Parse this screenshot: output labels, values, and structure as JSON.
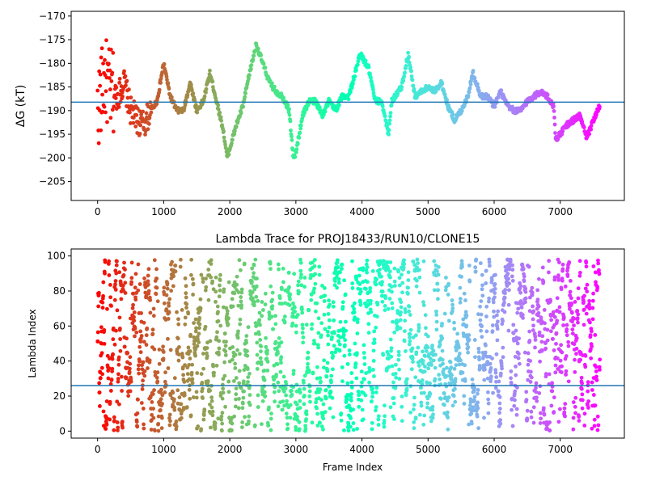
{
  "chart_data": [
    {
      "type": "scatter",
      "title": "",
      "xlabel": "",
      "ylabel": "ΔG (kT)",
      "xlim": [
        -400,
        7970
      ],
      "ylim": [
        -209,
        -169
      ],
      "xticks": [
        0,
        1000,
        2000,
        3000,
        4000,
        5000,
        6000,
        7000
      ],
      "yticks": [
        -205,
        -200,
        -195,
        -190,
        -185,
        -180,
        -175,
        -170
      ],
      "xtick_labels": [
        "0",
        "1000",
        "2000",
        "3000",
        "4000",
        "5000",
        "6000",
        "7000"
      ],
      "ytick_labels": [
        "−205",
        "−200",
        "−195",
        "−190",
        "−185",
        "−180",
        "−175",
        "−170"
      ],
      "hline": -188.2,
      "hline_color": "#1f77b4",
      "colormap": "rainbow (red at frame 0 → violet at last frame)",
      "frames_total": 7600,
      "trace_points": [
        [
          0,
          -190
        ],
        [
          100,
          -183
        ],
        [
          200,
          -186
        ],
        [
          300,
          -187
        ],
        [
          400,
          -184
        ],
        [
          500,
          -190
        ],
        [
          600,
          -192
        ],
        [
          700,
          -193
        ],
        [
          800,
          -190
        ],
        [
          900,
          -188
        ],
        [
          1000,
          -180
        ],
        [
          1100,
          -187
        ],
        [
          1200,
          -190
        ],
        [
          1300,
          -190
        ],
        [
          1400,
          -184
        ],
        [
          1500,
          -190
        ],
        [
          1600,
          -188
        ],
        [
          1700,
          -182
        ],
        [
          1800,
          -188
        ],
        [
          1900,
          -194
        ],
        [
          1960,
          -200
        ],
        [
          2100,
          -193
        ],
        [
          2200,
          -189
        ],
        [
          2300,
          -182
        ],
        [
          2400,
          -176
        ],
        [
          2500,
          -180
        ],
        [
          2600,
          -184
        ],
        [
          2700,
          -186
        ],
        [
          2800,
          -187
        ],
        [
          2900,
          -190
        ],
        [
          2960,
          -200
        ],
        [
          3000,
          -199
        ],
        [
          3100,
          -191
        ],
        [
          3200,
          -188
        ],
        [
          3300,
          -188
        ],
        [
          3400,
          -191
        ],
        [
          3500,
          -188
        ],
        [
          3600,
          -190
        ],
        [
          3700,
          -187
        ],
        [
          3800,
          -187
        ],
        [
          3900,
          -182
        ],
        [
          3970,
          -178
        ],
        [
          4100,
          -181
        ],
        [
          4200,
          -188
        ],
        [
          4300,
          -188
        ],
        [
          4400,
          -195
        ],
        [
          4450,
          -188
        ],
        [
          4600,
          -185
        ],
        [
          4700,
          -178
        ],
        [
          4800,
          -187
        ],
        [
          4900,
          -186
        ],
        [
          5000,
          -185
        ],
        [
          5100,
          -186
        ],
        [
          5200,
          -184
        ],
        [
          5300,
          -189
        ],
        [
          5400,
          -192
        ],
        [
          5500,
          -190
        ],
        [
          5600,
          -187
        ],
        [
          5680,
          -182
        ],
        [
          5800,
          -187
        ],
        [
          5900,
          -187
        ],
        [
          6000,
          -189
        ],
        [
          6100,
          -186
        ],
        [
          6200,
          -189
        ],
        [
          6300,
          -190
        ],
        [
          6400,
          -190
        ],
        [
          6500,
          -188
        ],
        [
          6600,
          -187
        ],
        [
          6700,
          -186
        ],
        [
          6800,
          -187
        ],
        [
          6900,
          -189
        ],
        [
          6930,
          -196
        ],
        [
          7000,
          -195
        ],
        [
          7100,
          -193
        ],
        [
          7200,
          -192
        ],
        [
          7300,
          -191
        ],
        [
          7400,
          -196
        ],
        [
          7500,
          -192
        ],
        [
          7600,
          -189
        ]
      ]
    },
    {
      "type": "scatter",
      "title": "Lambda Trace for PROJ18433/RUN10/CLONE15",
      "xlabel": "Frame Index",
      "ylabel": "Lambda Index",
      "xlim": [
        -400,
        7970
      ],
      "ylim": [
        -4,
        104
      ],
      "xticks": [
        0,
        1000,
        2000,
        3000,
        4000,
        5000,
        6000,
        7000
      ],
      "yticks": [
        0,
        20,
        40,
        60,
        80,
        100
      ],
      "xtick_labels": [
        "0",
        "1000",
        "2000",
        "3000",
        "4000",
        "5000",
        "6000",
        "7000"
      ],
      "ytick_labels": [
        "0",
        "20",
        "40",
        "60",
        "80",
        "100"
      ],
      "hline": 26,
      "hline_color": "#1f77b4",
      "colormap": "rainbow (red at frame 0 → violet at last frame)",
      "frames_total": 7600,
      "lambda_range": [
        0,
        98
      ]
    }
  ]
}
